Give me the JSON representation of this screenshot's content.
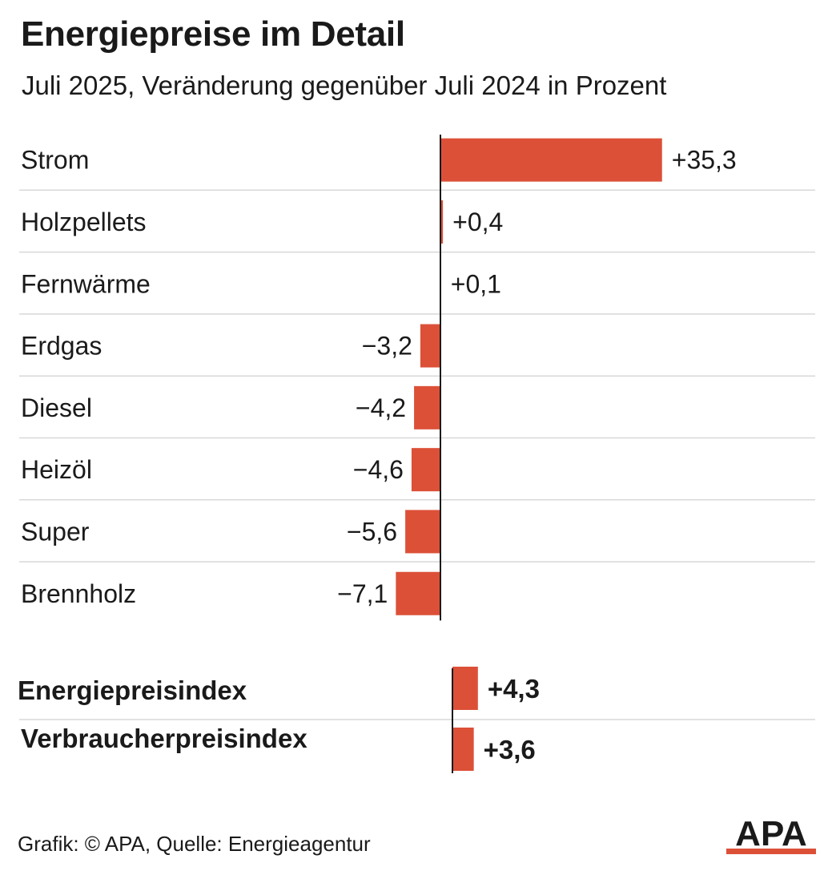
{
  "title": "Energiepreise im Detail",
  "subtitle": "Juli 2025, Veränderung gegenüber Juli 2024 in Prozent",
  "footer": "Grafik: © APA, Quelle: Energieagentur",
  "logo_text": "APA",
  "colors": {
    "bar": "#dc5038",
    "text": "#1a1a1a",
    "grid": "#d8d8d8",
    "axis": "#1a1a1a"
  },
  "chart_data": [
    {
      "type": "bar",
      "orientation": "horizontal",
      "categories": [
        "Strom",
        "Holzpellets",
        "Fernwärme",
        "Erdgas",
        "Diesel",
        "Heizöl",
        "Super",
        "Brennholz"
      ],
      "values": [
        35.3,
        0.4,
        0.1,
        -3.2,
        -4.2,
        -4.6,
        -5.6,
        -7.1
      ],
      "labels": [
        "+35,3",
        "+0,4",
        "+0,1",
        "−3,2",
        "−4,2",
        "−4,6",
        "−5,6",
        "−7,1"
      ],
      "xlabel": "",
      "ylabel": "",
      "grid": true
    },
    {
      "type": "bar",
      "orientation": "horizontal",
      "categories": [
        "Energiepreisindex",
        "Verbraucherpreisindex"
      ],
      "values": [
        4.3,
        3.6
      ],
      "labels": [
        "+4,3",
        "+3,6"
      ],
      "xlabel": "",
      "ylabel": "",
      "grid": true
    }
  ]
}
